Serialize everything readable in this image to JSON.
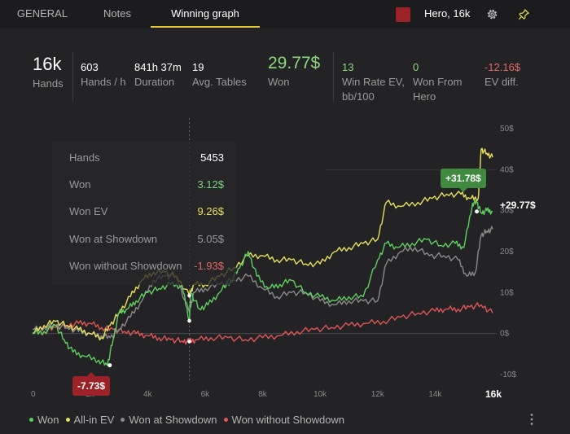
{
  "tabs": [
    {
      "label": "GENERAL",
      "active": false
    },
    {
      "label": "Notes",
      "active": false
    },
    {
      "label": "Winning graph",
      "active": true
    }
  ],
  "player": {
    "label": "Hero, 16k",
    "color": "#9b2226"
  },
  "toolbar": {
    "settings_icon": "gear-icon",
    "pin_icon": "pin-icon"
  },
  "stats": {
    "hands": {
      "value": "16k",
      "label": "Hands"
    },
    "hands_per_hour": {
      "value": "603",
      "label": "Hands / h"
    },
    "duration": {
      "value": "841h 37m",
      "label": "Duration"
    },
    "avg_tables": {
      "value": "19",
      "label": "Avg. Tables"
    },
    "won": {
      "value": "29.77$",
      "label": "Won"
    },
    "win_rate_ev": {
      "value": "13",
      "label": "Win Rate EV, bb/100"
    },
    "won_from_hero": {
      "value": "0",
      "label": "Won From Hero"
    },
    "ev_diff": {
      "value": "-12.16$",
      "label": "EV diff."
    }
  },
  "tooltip": {
    "rows": [
      {
        "label": "Hands",
        "value": "5453",
        "color": "#ffffff"
      },
      {
        "label": "Won",
        "value": "3.12$",
        "color": "#7ed37e"
      },
      {
        "label": "Won EV",
        "value": "9.26$",
        "color": "#e8e05a"
      },
      {
        "label": "Won at Showdown",
        "value": "5.05$",
        "color": "#9a9a9a"
      },
      {
        "label": "Won without Showdown",
        "value": "-1.93$",
        "color": "#e26868"
      }
    ]
  },
  "annotations": {
    "max": "+31.78$",
    "min": "-7.73$",
    "end": "+29.77$"
  },
  "x_end_label": "16k",
  "legend": [
    {
      "label": "Won",
      "color": "#5fcf5f"
    },
    {
      "label": "All-in EV",
      "color": "#e8e05a"
    },
    {
      "label": "Won at Showdown",
      "color": "#8a8a8a"
    },
    {
      "label": "Won without Showdown",
      "color": "#e05555"
    }
  ],
  "chart_data": {
    "type": "line",
    "xlabel": "",
    "ylabel": "",
    "xlim": [
      0,
      16000
    ],
    "ylim": [
      -10,
      50
    ],
    "x_ticks": [
      "0",
      "2k",
      "4k",
      "6k",
      "8k",
      "10k",
      "12k",
      "14k",
      "16k"
    ],
    "y_ticks": [
      "50$",
      "40$",
      "30$",
      "20$",
      "10$",
      "0$",
      "-10$"
    ],
    "grid": true,
    "legend_position": "bottom-left",
    "series": [
      {
        "name": "Won",
        "color": "#5fcf5f",
        "x": [
          0,
          400,
          800,
          1100,
          1400,
          1800,
          2300,
          2600,
          2800,
          3000,
          3300,
          3600,
          4000,
          4400,
          4800,
          5200,
          5453,
          5500,
          5800,
          6100,
          6500,
          6900,
          7200,
          7500,
          7800,
          8200,
          8600,
          9000,
          9500,
          10000,
          10500,
          11000,
          11500,
          12000,
          12300,
          12700,
          13200,
          13700,
          14200,
          14700,
          15000,
          15300,
          15450,
          15600,
          15800,
          16000
        ],
        "values": [
          0,
          0.5,
          2,
          -1.5,
          -4.5,
          -5.5,
          -6.5,
          -7.73,
          -1.5,
          5,
          6,
          8,
          10,
          11,
          12,
          11.5,
          3.12,
          10,
          6,
          7,
          10,
          13,
          16,
          20,
          14,
          11,
          12,
          13,
          10,
          9,
          8,
          9,
          9,
          18,
          22,
          21,
          22,
          23,
          21.5,
          22,
          21,
          31.78,
          32,
          29.5,
          30,
          29.77
        ]
      },
      {
        "name": "All-in EV",
        "color": "#e8e05a",
        "x": [
          0,
          400,
          800,
          1200,
          1600,
          2000,
          2400,
          2700,
          3000,
          3400,
          3800,
          4200,
          4600,
          5000,
          5453,
          5600,
          6000,
          6500,
          7000,
          7500,
          8000,
          8500,
          9000,
          9500,
          10000,
          10500,
          11000,
          11500,
          12000,
          12300,
          12800,
          13400,
          13900,
          14400,
          14900,
          15200,
          15500,
          15600,
          15800,
          16000
        ],
        "values": [
          0,
          2,
          3,
          2,
          1,
          0,
          -1,
          2,
          5,
          9,
          13,
          15,
          15,
          14,
          9.26,
          12,
          12,
          14,
          16,
          19,
          19,
          18,
          18,
          17,
          17,
          20,
          21,
          22,
          23,
          32,
          31,
          32,
          33,
          34,
          34,
          33,
          33,
          45,
          44,
          43
        ]
      },
      {
        "name": "Won at Showdown",
        "color": "#8a8a8a",
        "x": [
          0,
          400,
          800,
          1200,
          1600,
          2000,
          2400,
          2700,
          3000,
          3400,
          3800,
          4200,
          4600,
          5000,
          5453,
          5600,
          6000,
          6500,
          7000,
          7500,
          8000,
          8500,
          9000,
          9500,
          10000,
          10500,
          11000,
          11500,
          12000,
          12300,
          12800,
          13300,
          13800,
          14300,
          14800,
          15100,
          15400,
          15600,
          15800,
          16000
        ],
        "values": [
          1,
          1.5,
          2,
          1.5,
          0.5,
          0,
          -0.5,
          -1,
          1,
          4,
          8,
          13,
          14,
          14,
          5.05,
          10,
          11,
          12,
          13,
          14,
          11,
          9,
          10,
          10,
          8,
          7,
          8,
          8,
          8,
          17,
          20,
          21,
          19,
          19,
          18,
          14,
          15,
          24,
          25,
          25.5
        ]
      },
      {
        "name": "Won without Showdown",
        "color": "#e05555",
        "x": [
          0,
          400,
          800,
          1200,
          1600,
          2000,
          2400,
          2800,
          3200,
          3600,
          4000,
          4400,
          4800,
          5200,
          5453,
          5700,
          6200,
          6800,
          7400,
          8000,
          8600,
          9200,
          9800,
          10400,
          11000,
          11600,
          12200,
          12800,
          13400,
          14000,
          14400,
          14800,
          15200,
          15600,
          16000
        ],
        "values": [
          0,
          0.5,
          1.5,
          2,
          2.5,
          2.5,
          1.5,
          1,
          0.5,
          0,
          -0.5,
          -1,
          -1.5,
          -1.8,
          -1.93,
          -1.5,
          -1,
          -1,
          -1.5,
          -1,
          -0.5,
          0.5,
          1,
          1.5,
          2,
          2.5,
          3,
          4,
          5,
          5.5,
          6,
          6,
          6.5,
          7,
          5
        ]
      }
    ]
  }
}
